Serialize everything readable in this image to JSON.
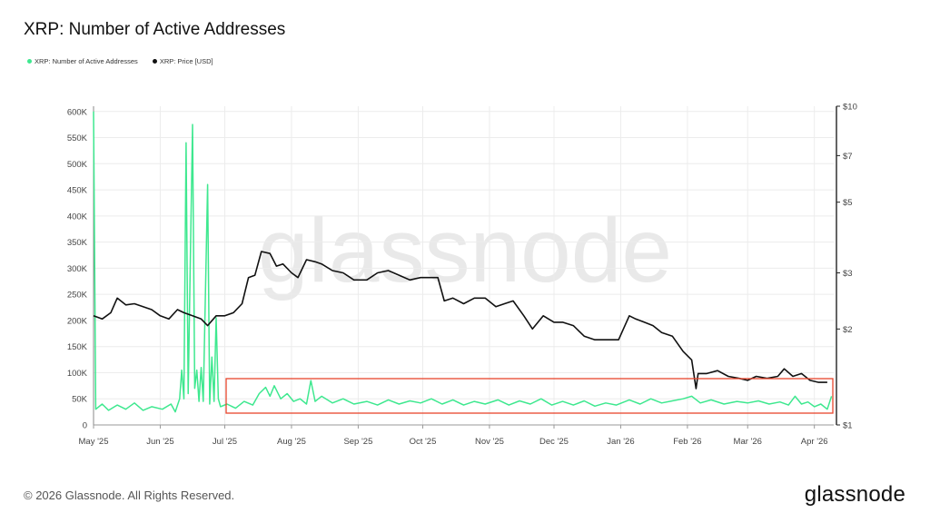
{
  "title": "XRP: Number of Active Addresses",
  "legend": [
    {
      "label": "XRP: Number of Active Addresses",
      "color": "#3ee88f"
    },
    {
      "label": "XRP: Price [USD]",
      "color": "#111111"
    }
  ],
  "footer": "© 2026 Glassnode. All Rights Reserved.",
  "brand": "glassnode",
  "watermark": "glassnode",
  "colors": {
    "addresses": "#3ee88f",
    "price": "#111111",
    "highlight": "#e8452c",
    "grid": "#ececec"
  },
  "chart_data": {
    "type": "line",
    "x_labels": [
      "May '25",
      "Jun '25",
      "Jul '25",
      "Aug '25",
      "Sep '25",
      "Oct '25",
      "Nov '25",
      "Dec '25",
      "Jan '26",
      "Feb '26",
      "Mar '26",
      "Apr '26"
    ],
    "y_left_ticks": [
      "0",
      "50K",
      "100K",
      "150K",
      "200K",
      "250K",
      "300K",
      "350K",
      "400K",
      "450K",
      "500K",
      "550K",
      "600K"
    ],
    "y_left_values": [
      0,
      50000,
      100000,
      150000,
      200000,
      250000,
      300000,
      350000,
      400000,
      450000,
      500000,
      550000,
      600000
    ],
    "y_right_ticks": [
      "$1",
      "$2",
      "$3",
      "$5",
      "$7",
      "$10"
    ],
    "y_right_values": [
      1,
      2,
      3,
      5,
      7,
      10
    ],
    "y_right_scale": "log",
    "ylim_left": [
      0,
      610000
    ],
    "ylim_right": [
      1,
      10
    ],
    "series": [
      {
        "name": "XRP: Number of Active Addresses",
        "axis": "left",
        "points": [
          [
            "2025-05-01",
            600000
          ],
          [
            "2025-05-02",
            30000
          ],
          [
            "2025-05-05",
            40000
          ],
          [
            "2025-05-08",
            28000
          ],
          [
            "2025-05-12",
            38000
          ],
          [
            "2025-05-16",
            30000
          ],
          [
            "2025-05-20",
            42000
          ],
          [
            "2025-05-24",
            28000
          ],
          [
            "2025-05-28",
            35000
          ],
          [
            "2025-06-02",
            30000
          ],
          [
            "2025-06-06",
            40000
          ],
          [
            "2025-06-08",
            25000
          ],
          [
            "2025-06-10",
            50000
          ],
          [
            "2025-06-11",
            105000
          ],
          [
            "2025-06-12",
            50000
          ],
          [
            "2025-06-13",
            540000
          ],
          [
            "2025-06-14",
            60000
          ],
          [
            "2025-06-16",
            575000
          ],
          [
            "2025-06-17",
            70000
          ],
          [
            "2025-06-18",
            105000
          ],
          [
            "2025-06-19",
            45000
          ],
          [
            "2025-06-20",
            110000
          ],
          [
            "2025-06-21",
            45000
          ],
          [
            "2025-06-23",
            460000
          ],
          [
            "2025-06-24",
            40000
          ],
          [
            "2025-06-25",
            130000
          ],
          [
            "2025-06-26",
            45000
          ],
          [
            "2025-06-27",
            205000
          ],
          [
            "2025-06-28",
            50000
          ],
          [
            "2025-06-29",
            35000
          ],
          [
            "2025-07-02",
            40000
          ],
          [
            "2025-07-06",
            32000
          ],
          [
            "2025-07-10",
            45000
          ],
          [
            "2025-07-14",
            38000
          ],
          [
            "2025-07-17",
            60000
          ],
          [
            "2025-07-20",
            72000
          ],
          [
            "2025-07-22",
            55000
          ],
          [
            "2025-07-24",
            75000
          ],
          [
            "2025-07-27",
            50000
          ],
          [
            "2025-07-30",
            60000
          ],
          [
            "2025-08-02",
            45000
          ],
          [
            "2025-08-05",
            50000
          ],
          [
            "2025-08-08",
            40000
          ],
          [
            "2025-08-10",
            85000
          ],
          [
            "2025-08-12",
            45000
          ],
          [
            "2025-08-15",
            55000
          ],
          [
            "2025-08-20",
            42000
          ],
          [
            "2025-08-25",
            50000
          ],
          [
            "2025-08-30",
            40000
          ],
          [
            "2025-09-05",
            45000
          ],
          [
            "2025-09-10",
            38000
          ],
          [
            "2025-09-15",
            48000
          ],
          [
            "2025-09-20",
            40000
          ],
          [
            "2025-09-25",
            46000
          ],
          [
            "2025-09-30",
            42000
          ],
          [
            "2025-10-05",
            50000
          ],
          [
            "2025-10-10",
            40000
          ],
          [
            "2025-10-15",
            48000
          ],
          [
            "2025-10-20",
            38000
          ],
          [
            "2025-10-25",
            45000
          ],
          [
            "2025-10-30",
            40000
          ],
          [
            "2025-11-05",
            48000
          ],
          [
            "2025-11-10",
            38000
          ],
          [
            "2025-11-15",
            46000
          ],
          [
            "2025-11-20",
            40000
          ],
          [
            "2025-11-25",
            50000
          ],
          [
            "2025-11-30",
            38000
          ],
          [
            "2025-12-05",
            45000
          ],
          [
            "2025-12-10",
            38000
          ],
          [
            "2025-12-15",
            46000
          ],
          [
            "2025-12-20",
            36000
          ],
          [
            "2025-12-25",
            42000
          ],
          [
            "2025-12-30",
            38000
          ],
          [
            "2026-01-05",
            48000
          ],
          [
            "2026-01-10",
            40000
          ],
          [
            "2026-01-15",
            50000
          ],
          [
            "2026-01-20",
            42000
          ],
          [
            "2026-01-25",
            46000
          ],
          [
            "2026-01-30",
            50000
          ],
          [
            "2026-02-03",
            55000
          ],
          [
            "2026-02-07",
            42000
          ],
          [
            "2026-02-12",
            48000
          ],
          [
            "2026-02-18",
            40000
          ],
          [
            "2026-02-24",
            45000
          ],
          [
            "2026-03-01",
            42000
          ],
          [
            "2026-03-06",
            46000
          ],
          [
            "2026-03-11",
            40000
          ],
          [
            "2026-03-16",
            44000
          ],
          [
            "2026-03-20",
            38000
          ],
          [
            "2026-03-23",
            55000
          ],
          [
            "2026-03-26",
            40000
          ],
          [
            "2026-03-29",
            44000
          ],
          [
            "2026-04-01",
            35000
          ],
          [
            "2026-04-04",
            40000
          ],
          [
            "2026-04-07",
            30000
          ],
          [
            "2026-04-09",
            55000
          ]
        ]
      },
      {
        "name": "XRP: Price [USD]",
        "axis": "right",
        "points": [
          [
            "2025-05-01",
            2.2
          ],
          [
            "2025-05-05",
            2.15
          ],
          [
            "2025-05-09",
            2.25
          ],
          [
            "2025-05-12",
            2.5
          ],
          [
            "2025-05-16",
            2.38
          ],
          [
            "2025-05-20",
            2.4
          ],
          [
            "2025-05-24",
            2.35
          ],
          [
            "2025-05-28",
            2.3
          ],
          [
            "2025-06-01",
            2.2
          ],
          [
            "2025-06-05",
            2.15
          ],
          [
            "2025-06-09",
            2.3
          ],
          [
            "2025-06-12",
            2.25
          ],
          [
            "2025-06-16",
            2.2
          ],
          [
            "2025-06-20",
            2.15
          ],
          [
            "2025-06-23",
            2.05
          ],
          [
            "2025-06-27",
            2.2
          ],
          [
            "2025-07-01",
            2.2
          ],
          [
            "2025-07-05",
            2.25
          ],
          [
            "2025-07-09",
            2.4
          ],
          [
            "2025-07-12",
            2.9
          ],
          [
            "2025-07-15",
            2.95
          ],
          [
            "2025-07-18",
            3.5
          ],
          [
            "2025-07-22",
            3.45
          ],
          [
            "2025-07-25",
            3.15
          ],
          [
            "2025-07-28",
            3.2
          ],
          [
            "2025-08-01",
            3.0
          ],
          [
            "2025-08-04",
            2.9
          ],
          [
            "2025-08-08",
            3.3
          ],
          [
            "2025-08-12",
            3.25
          ],
          [
            "2025-08-15",
            3.2
          ],
          [
            "2025-08-20",
            3.05
          ],
          [
            "2025-08-25",
            3.0
          ],
          [
            "2025-08-30",
            2.85
          ],
          [
            "2025-09-05",
            2.85
          ],
          [
            "2025-09-10",
            3.0
          ],
          [
            "2025-09-15",
            3.05
          ],
          [
            "2025-09-20",
            2.95
          ],
          [
            "2025-09-25",
            2.85
          ],
          [
            "2025-09-30",
            2.9
          ],
          [
            "2025-10-05",
            2.9
          ],
          [
            "2025-10-08",
            2.9
          ],
          [
            "2025-10-11",
            2.45
          ],
          [
            "2025-10-15",
            2.5
          ],
          [
            "2025-10-20",
            2.4
          ],
          [
            "2025-10-25",
            2.5
          ],
          [
            "2025-10-30",
            2.5
          ],
          [
            "2025-11-04",
            2.35
          ],
          [
            "2025-11-08",
            2.4
          ],
          [
            "2025-11-12",
            2.45
          ],
          [
            "2025-11-17",
            2.2
          ],
          [
            "2025-11-21",
            2.0
          ],
          [
            "2025-11-26",
            2.2
          ],
          [
            "2025-12-01",
            2.1
          ],
          [
            "2025-12-05",
            2.1
          ],
          [
            "2025-12-10",
            2.05
          ],
          [
            "2025-12-15",
            1.9
          ],
          [
            "2025-12-20",
            1.85
          ],
          [
            "2025-12-25",
            1.85
          ],
          [
            "2025-12-31",
            1.85
          ],
          [
            "2026-01-05",
            2.2
          ],
          [
            "2026-01-08",
            2.15
          ],
          [
            "2026-01-12",
            2.1
          ],
          [
            "2026-01-16",
            2.05
          ],
          [
            "2026-01-20",
            1.95
          ],
          [
            "2026-01-25",
            1.9
          ],
          [
            "2026-01-30",
            1.7
          ],
          [
            "2026-02-03",
            1.6
          ],
          [
            "2026-02-05",
            1.3
          ],
          [
            "2026-02-06",
            1.45
          ],
          [
            "2026-02-10",
            1.45
          ],
          [
            "2026-02-15",
            1.48
          ],
          [
            "2026-02-20",
            1.42
          ],
          [
            "2026-02-25",
            1.4
          ],
          [
            "2026-03-01",
            1.38
          ],
          [
            "2026-03-05",
            1.42
          ],
          [
            "2026-03-10",
            1.4
          ],
          [
            "2026-03-15",
            1.42
          ],
          [
            "2026-03-18",
            1.5
          ],
          [
            "2026-03-22",
            1.42
          ],
          [
            "2026-03-26",
            1.45
          ],
          [
            "2026-03-30",
            1.38
          ],
          [
            "2026-04-03",
            1.36
          ],
          [
            "2026-04-07",
            1.36
          ]
        ]
      }
    ]
  }
}
